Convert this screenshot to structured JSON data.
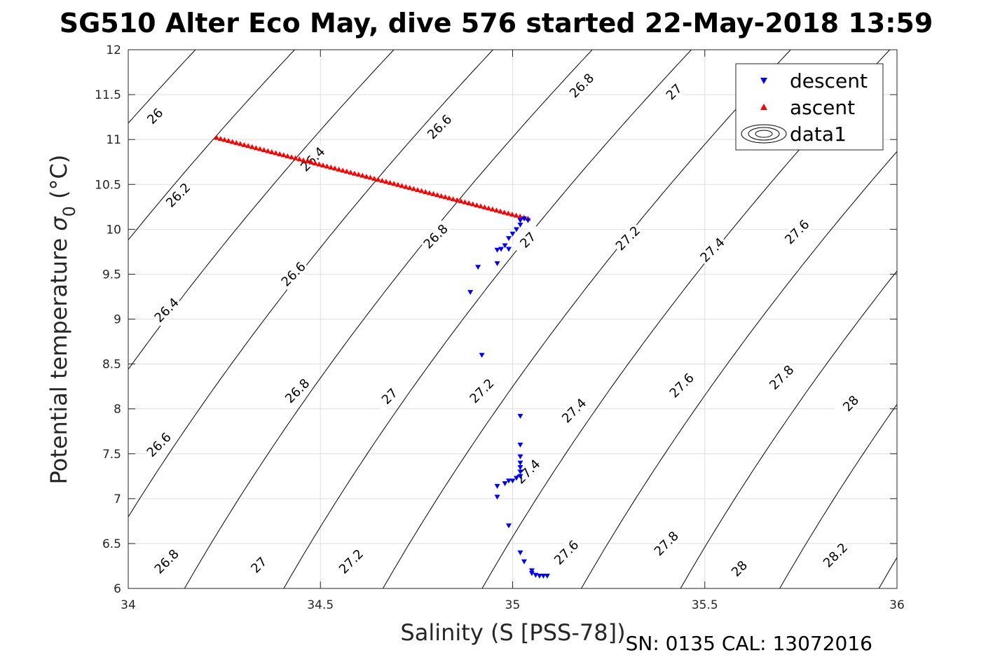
{
  "chart_data": {
    "type": "scatter",
    "title": "SG510 Alter Eco May, dive 576 started 22-May-2018 13:59",
    "xlabel": "Salinity (S [PSS-78])",
    "ylabel": "Potential temperature",
    "ylabel_symbol": "σ",
    "ylabel_subscript": "0",
    "ylabel_unit": "(°C)",
    "footer": "SN: 0135  CAL: 13072016",
    "xlim": [
      34,
      36
    ],
    "ylim": [
      6,
      12
    ],
    "xticks": [
      34,
      34.5,
      35,
      35.5,
      36
    ],
    "xtick_labels": [
      "34",
      "34.5",
      "35",
      "35.5",
      "36"
    ],
    "yticks": [
      6,
      6.5,
      7,
      7.5,
      8,
      8.5,
      9,
      9.5,
      10,
      10.5,
      11,
      11.5,
      12
    ],
    "ytick_labels": [
      "6",
      "6.5",
      "7",
      "7.5",
      "8",
      "8.5",
      "9",
      "9.5",
      "10",
      "10.5",
      "11",
      "11.5",
      "12"
    ],
    "grid": true,
    "legend_position": "top-right",
    "series": [
      {
        "name": "descent",
        "marker": "triangle-down",
        "color": "#0000ff",
        "points": [
          [
            34.89,
            9.3
          ],
          [
            34.91,
            9.58
          ],
          [
            34.92,
            8.6
          ],
          [
            34.96,
            9.62
          ],
          [
            34.96,
            9.77
          ],
          [
            34.97,
            9.78
          ],
          [
            34.98,
            9.82
          ],
          [
            34.99,
            9.78
          ],
          [
            34.99,
            9.9
          ],
          [
            35.0,
            9.95
          ],
          [
            35.01,
            10.0
          ],
          [
            35.02,
            10.05
          ],
          [
            35.02,
            10.1
          ],
          [
            35.03,
            10.12
          ],
          [
            35.04,
            10.1
          ],
          [
            34.96,
            7.14
          ],
          [
            34.96,
            7.02
          ],
          [
            34.98,
            7.17
          ],
          [
            34.99,
            7.2
          ],
          [
            35.0,
            7.2
          ],
          [
            35.01,
            7.23
          ],
          [
            35.02,
            7.25
          ],
          [
            35.02,
            7.3
          ],
          [
            35.02,
            7.35
          ],
          [
            35.02,
            7.4
          ],
          [
            35.02,
            7.47
          ],
          [
            35.02,
            7.6
          ],
          [
            35.02,
            7.92
          ],
          [
            34.99,
            6.7
          ],
          [
            35.02,
            6.4
          ],
          [
            35.03,
            6.3
          ],
          [
            35.05,
            6.2
          ],
          [
            35.05,
            6.17
          ],
          [
            35.06,
            6.15
          ],
          [
            35.07,
            6.14
          ],
          [
            35.08,
            6.14
          ],
          [
            35.09,
            6.14
          ]
        ]
      },
      {
        "name": "ascent",
        "marker": "triangle-up",
        "color": "#ff0000",
        "x_range": [
          34.23,
          35.04
        ],
        "y_range": [
          11.02,
          10.12
        ],
        "count": 80
      },
      {
        "name": "data1",
        "marker": "contour",
        "color": "#000000",
        "density_labels": [
          {
            "value": "26",
            "x": 34.07,
            "y": 11.26
          },
          {
            "value": "26.2",
            "x": 34.13,
            "y": 10.38
          },
          {
            "value": "26.4",
            "x": 34.48,
            "y": 10.78
          },
          {
            "value": "26.4",
            "x": 34.1,
            "y": 9.1
          },
          {
            "value": "26.6",
            "x": 34.81,
            "y": 11.14
          },
          {
            "value": "26.6",
            "x": 34.43,
            "y": 9.5
          },
          {
            "value": "26.6",
            "x": 34.08,
            "y": 7.6
          },
          {
            "value": "26.8",
            "x": 35.18,
            "y": 11.6
          },
          {
            "value": "26.8",
            "x": 34.8,
            "y": 9.92
          },
          {
            "value": "26.8",
            "x": 34.44,
            "y": 8.2
          },
          {
            "value": "26.8",
            "x": 34.1,
            "y": 6.3
          },
          {
            "value": "27",
            "x": 35.42,
            "y": 11.53
          },
          {
            "value": "27",
            "x": 35.04,
            "y": 9.88
          },
          {
            "value": "27",
            "x": 34.68,
            "y": 8.14
          },
          {
            "value": "27",
            "x": 34.34,
            "y": 6.26
          },
          {
            "value": "27.2",
            "x": 35.3,
            "y": 9.9
          },
          {
            "value": "27.2",
            "x": 34.92,
            "y": 8.2
          },
          {
            "value": "27.2",
            "x": 34.58,
            "y": 6.3
          },
          {
            "value": "27.4",
            "x": 35.52,
            "y": 9.77
          },
          {
            "value": "27.4",
            "x": 35.16,
            "y": 7.98
          },
          {
            "value": "27.4",
            "x": 35.04,
            "y": 7.3
          },
          {
            "value": "27.6",
            "x": 35.74,
            "y": 9.97
          },
          {
            "value": "27.6",
            "x": 35.44,
            "y": 8.26
          },
          {
            "value": "27.6",
            "x": 35.14,
            "y": 6.4
          },
          {
            "value": "27.8",
            "x": 35.7,
            "y": 8.35
          },
          {
            "value": "27.8",
            "x": 35.4,
            "y": 6.5
          },
          {
            "value": "28",
            "x": 35.88,
            "y": 8.06
          },
          {
            "value": "28",
            "x": 35.59,
            "y": 6.22
          },
          {
            "value": "28.2",
            "x": 35.84,
            "y": 6.37
          }
        ]
      }
    ]
  }
}
